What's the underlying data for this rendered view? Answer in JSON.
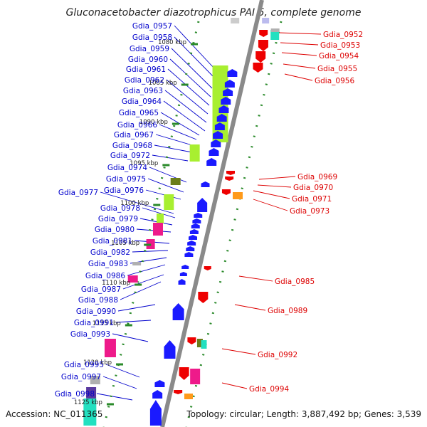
{
  "title": "Gluconacetobacter diazotrophicus PAI 5, complete genome",
  "accession_text": "Accession: NC_011365",
  "summary_text": "Topology: circular; Length: 3,887,492 bp; Genes: 3,539",
  "colors": {
    "left_label": "#0000cc",
    "right_label": "#dd0000",
    "forward_strand": "#1a1aff",
    "reverse_strand": "#ee0000",
    "backbone": "#8a8a8a",
    "tick": "#2a8a2a",
    "lime": "#a8ef30",
    "magenta": "#ee1a8a",
    "olive": "#6b7d1a",
    "orange": "#ff9a1a",
    "cyan": "#22e0c0",
    "gray": "#b0b0b0",
    "violet": "#5a3aa0"
  },
  "kbp_marks": [
    {
      "id": "k1080",
      "text": "1080 kbp"
    },
    {
      "id": "k1085",
      "text": "1085 kbp"
    },
    {
      "id": "k1090",
      "text": "1090 kbp"
    },
    {
      "id": "k1095",
      "text": "1095 kbp"
    },
    {
      "id": "k1100",
      "text": "1100 kbp"
    },
    {
      "id": "k1105",
      "text": "1105 kbp"
    },
    {
      "id": "k1110",
      "text": "1110 kbp"
    },
    {
      "id": "k1115",
      "text": "1115 kbp"
    },
    {
      "id": "k1120",
      "text": "1120 kbp"
    },
    {
      "id": "k1125",
      "text": "1125 kbp"
    }
  ],
  "left_genes": [
    "Gdia_0957",
    "Gdia_0958",
    "Gdia_0959",
    "Gdia_0960",
    "Gdia_0961",
    "Gdia_0962",
    "Gdia_0963",
    "Gdia_0964",
    "Gdia_0965",
    "Gdia_0966",
    "Gdia_0967",
    "Gdia_0968",
    "Gdia_0972",
    "Gdia_0974",
    "Gdia_0975",
    "Gdia_0976",
    "Gdia_0977",
    "Gdia_0978",
    "Gdia_0979",
    "Gdia_0980",
    "Gdia_0981",
    "Gdia_0982",
    "Gdia_0983",
    "Gdia_0986",
    "Gdia_0987",
    "Gdia_0988",
    "Gdia_0990",
    "Gdia_0991",
    "Gdia_0993",
    "Gdia_0995",
    "Gdia_0997",
    "Gdia_0998"
  ],
  "right_genes": [
    "Gdia_0952",
    "Gdia_0953",
    "Gdia_0954",
    "Gdia_0955",
    "Gdia_0956",
    "Gdia_0969",
    "Gdia_0970",
    "Gdia_0971",
    "Gdia_0973",
    "Gdia_0985",
    "Gdia_0989",
    "Gdia_0992",
    "Gdia_0994"
  ]
}
